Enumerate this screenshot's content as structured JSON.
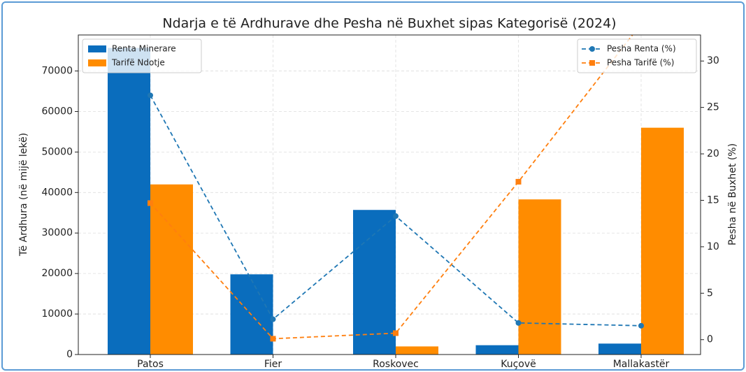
{
  "chart_data": {
    "type": "bar",
    "title": "Ndarja e të Ardhurave dhe Pesha në Buxhet sipas Kategorisë (2024)",
    "y_label": "Të Ardhura (në mijë lekë)",
    "y2_label": "Pesha në Buxhet (%)",
    "categories": [
      "Patos",
      "Fier",
      "Roskovec",
      "Kuçovë",
      "Mallakastër"
    ],
    "series": [
      {
        "name": "Renta Minerare",
        "type": "bar",
        "axis": "y",
        "color": "#0a6dbd",
        "values": [
          75700,
          19800,
          35700,
          2300,
          2700
        ]
      },
      {
        "name": "Tarifë Ndotje",
        "type": "bar",
        "axis": "y",
        "color": "#ff8c00",
        "values": [
          42000,
          0,
          2000,
          38300,
          56000
        ]
      },
      {
        "name": "Pesha Renta (%)",
        "type": "line",
        "axis": "y2",
        "marker": "circle",
        "color": "#1f77b4",
        "values": [
          26.3,
          2.2,
          13.3,
          1.8,
          1.5
        ]
      },
      {
        "name": "Pesha Tarifë (%)",
        "type": "line",
        "axis": "y2",
        "marker": "square",
        "color": "#ff7f0e",
        "values": [
          14.7,
          0.1,
          0.7,
          17,
          34
        ]
      }
    ],
    "ylim": [
      0,
      78900
    ],
    "yticks": [
      0,
      10000,
      20000,
      30000,
      40000,
      50000,
      60000,
      70000
    ],
    "y2lim": [
      -1.6,
      32.8
    ],
    "y2ticks": [
      0,
      5,
      10,
      15,
      20,
      25,
      30
    ],
    "grid": true,
    "legend": "upper left",
    "legend2": "upper right"
  }
}
